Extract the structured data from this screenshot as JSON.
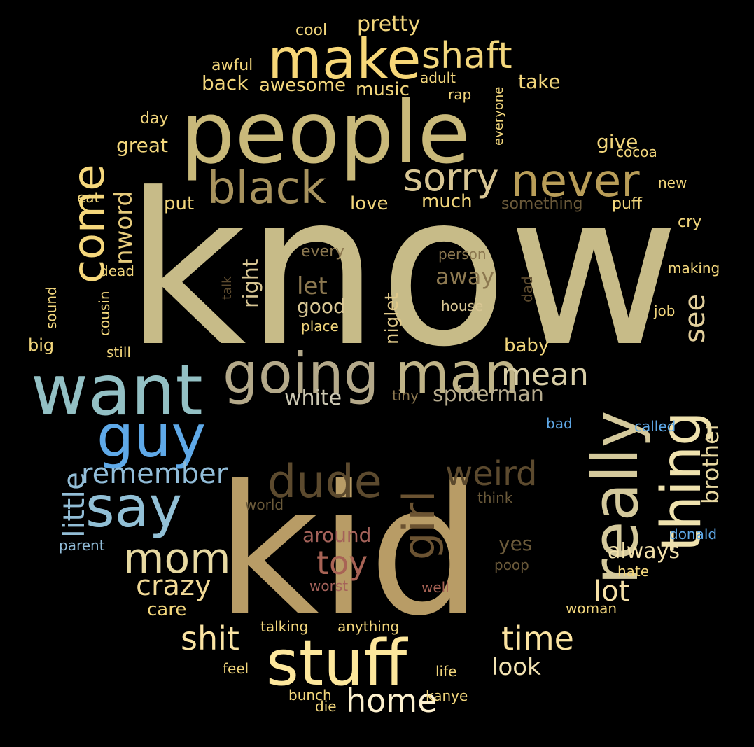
{
  "background": "#000000",
  "words": [
    {
      "text": "know",
      "color": "#c7bb88"
    },
    {
      "text": "kid",
      "color": "#b89c66"
    },
    {
      "text": "people",
      "color": "#c9b97a"
    },
    {
      "text": "want",
      "color": "#93c0c4"
    },
    {
      "text": "going",
      "color": "#b4a98a"
    },
    {
      "text": "man",
      "color": "#c0b488"
    },
    {
      "text": "stuff",
      "color": "#fde79c"
    },
    {
      "text": "make",
      "color": "#f7d778"
    },
    {
      "text": "say",
      "color": "#92c0d6"
    },
    {
      "text": "guy",
      "color": "#5fa9e8"
    },
    {
      "text": "really",
      "color": "#d4c99c"
    },
    {
      "text": "thing",
      "color": "#efe2ae"
    },
    {
      "text": "dude",
      "color": "#5c4a2e"
    },
    {
      "text": "black",
      "color": "#a8935e"
    },
    {
      "text": "never",
      "color": "#b89d58"
    },
    {
      "text": "come",
      "color": "#f5d77c"
    },
    {
      "text": "girl",
      "color": "#6b5332"
    },
    {
      "text": "shaft",
      "color": "#f2d67c"
    },
    {
      "text": "mom",
      "color": "#e7d9a2"
    },
    {
      "text": "sorry",
      "color": "#d8c694"
    },
    {
      "text": "weird",
      "color": "#5c4a2e"
    },
    {
      "text": "shit",
      "color": "#fbe4a4"
    },
    {
      "text": "time",
      "color": "#fbe3a1"
    },
    {
      "text": "home",
      "color": "#fdf1cf"
    },
    {
      "text": "remember",
      "color": "#92bdd9"
    },
    {
      "text": "little",
      "color": "#92bdd6"
    },
    {
      "text": "mean",
      "color": "#d8cda6"
    },
    {
      "text": "toy",
      "color": "#a86355"
    },
    {
      "text": "see",
      "color": "#e2cf9c"
    },
    {
      "text": "crazy",
      "color": "#f1d996"
    },
    {
      "text": "lot",
      "color": "#f6e1a7"
    },
    {
      "text": "brother",
      "color": "#e8d8a1"
    },
    {
      "text": "nword",
      "color": "#e6cb7c"
    },
    {
      "text": "look",
      "color": "#f2e3b2"
    },
    {
      "text": "pretty",
      "color": "#f2d67c"
    },
    {
      "text": "white",
      "color": "#cbc7b2"
    },
    {
      "text": "spiderman",
      "color": "#b6ab8e"
    },
    {
      "text": "let",
      "color": "#8c7850"
    },
    {
      "text": "away",
      "color": "#8c7850"
    },
    {
      "text": "right",
      "color": "#d8c694"
    },
    {
      "text": "around",
      "color": "#a4625a"
    },
    {
      "text": "always",
      "color": "#f3e2ac"
    },
    {
      "text": "great",
      "color": "#f2d67c"
    },
    {
      "text": "good",
      "color": "#d8c694"
    },
    {
      "text": "back",
      "color": "#f2d67c"
    },
    {
      "text": "awesome",
      "color": "#f2d67c"
    },
    {
      "text": "music",
      "color": "#f2d67c"
    },
    {
      "text": "take",
      "color": "#f2d67c"
    },
    {
      "text": "give",
      "color": "#f2d67c"
    },
    {
      "text": "niglet",
      "color": "#e0c98a"
    },
    {
      "text": "love",
      "color": "#f2d67c"
    },
    {
      "text": "much",
      "color": "#f2d67c"
    },
    {
      "text": "put",
      "color": "#f2d67c"
    },
    {
      "text": "baby",
      "color": "#f2d67c"
    },
    {
      "text": "yes",
      "color": "#6b5a3a"
    },
    {
      "text": "care",
      "color": "#f2d67c"
    },
    {
      "text": "big",
      "color": "#f2d67c"
    },
    {
      "text": "cool",
      "color": "#f2d67c"
    },
    {
      "text": "awful",
      "color": "#f2d67c"
    },
    {
      "text": "adult",
      "color": "#f2d67c"
    },
    {
      "text": "rap",
      "color": "#f2d67c"
    },
    {
      "text": "everyone",
      "color": "#f2d67c"
    },
    {
      "text": "day",
      "color": "#f2d67c"
    },
    {
      "text": "cocoa",
      "color": "#f2d67c"
    },
    {
      "text": "new",
      "color": "#f2d67c"
    },
    {
      "text": "eat",
      "color": "#f2d67c"
    },
    {
      "text": "something",
      "color": "#6b5a3a"
    },
    {
      "text": "puff",
      "color": "#f2d67c"
    },
    {
      "text": "cry",
      "color": "#f2d67c"
    },
    {
      "text": "making",
      "color": "#f2d67c"
    },
    {
      "text": "every",
      "color": "#8c7850"
    },
    {
      "text": "person",
      "color": "#8c7850"
    },
    {
      "text": "dead",
      "color": "#f2d67c"
    },
    {
      "text": "talk",
      "color": "#5c4a2e"
    },
    {
      "text": "dad",
      "color": "#5c4a2e"
    },
    {
      "text": "sound",
      "color": "#f2d67c"
    },
    {
      "text": "cousin",
      "color": "#f2d67c"
    },
    {
      "text": "house",
      "color": "#d8c694"
    },
    {
      "text": "job",
      "color": "#f2d67c"
    },
    {
      "text": "place",
      "color": "#f2d67c"
    },
    {
      "text": "still",
      "color": "#f2d67c"
    },
    {
      "text": "tiny",
      "color": "#8c7850"
    },
    {
      "text": "bad",
      "color": "#5fa9e8"
    },
    {
      "text": "called",
      "color": "#5fa9e8"
    },
    {
      "text": "world",
      "color": "#6b5a3a"
    },
    {
      "text": "think",
      "color": "#6b5a3a"
    },
    {
      "text": "parent",
      "color": "#92bdd9"
    },
    {
      "text": "donald",
      "color": "#5fa9e8"
    },
    {
      "text": "poop",
      "color": "#6b5a3a"
    },
    {
      "text": "hate",
      "color": "#f2d67c"
    },
    {
      "text": "worst",
      "color": "#a4625a"
    },
    {
      "text": "well",
      "color": "#a86355"
    },
    {
      "text": "woman",
      "color": "#f2d67c"
    },
    {
      "text": "talking",
      "color": "#f2d67c"
    },
    {
      "text": "anything",
      "color": "#f2d67c"
    },
    {
      "text": "feel",
      "color": "#f2d67c"
    },
    {
      "text": "life",
      "color": "#f2d67c"
    },
    {
      "text": "bunch",
      "color": "#f2d67c"
    },
    {
      "text": "die",
      "color": "#f2d67c"
    },
    {
      "text": "kanye",
      "color": "#f2d67c"
    }
  ]
}
